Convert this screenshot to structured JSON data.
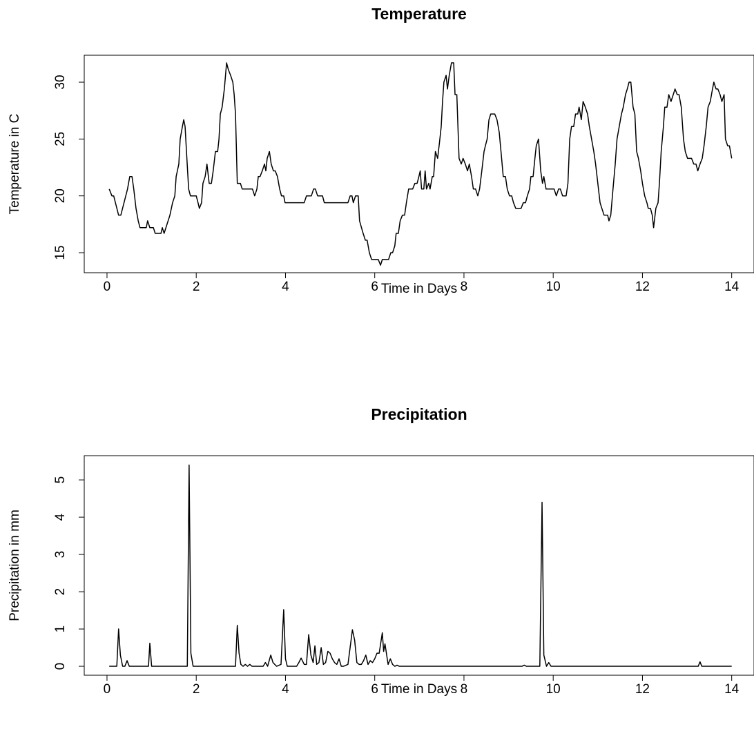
{
  "chart_data": [
    {
      "type": "line",
      "title": "Temperature",
      "x_label": "Time in Days",
      "y_label": "Temperature in C",
      "color": "#000000",
      "xlim": [
        -0.51,
        14.5
      ],
      "ylim": [
        13.24,
        32.37
      ],
      "xticks": [
        0,
        2,
        4,
        6,
        8,
        10,
        12,
        14
      ],
      "yticks": [
        15,
        20,
        25,
        30
      ],
      "x": [
        0.05,
        0.11,
        0.15,
        0.26,
        0.31,
        0.46,
        0.51,
        0.56,
        0.6,
        0.65,
        0.7,
        0.74,
        0.88,
        0.91,
        0.96,
        1.04,
        1.08,
        1.21,
        1.24,
        1.28,
        1.41,
        1.47,
        1.52,
        1.55,
        1.61,
        1.64,
        1.69,
        1.72,
        1.75,
        1.79,
        1.83,
        1.87,
        2.0,
        2.04,
        2.07,
        2.12,
        2.15,
        2.2,
        2.24,
        2.29,
        2.34,
        2.38,
        2.43,
        2.48,
        2.51,
        2.54,
        2.58,
        2.63,
        2.68,
        2.72,
        2.77,
        2.82,
        2.85,
        2.88,
        2.92,
        2.99,
        3.03,
        3.26,
        3.31,
        3.36,
        3.39,
        3.43,
        3.48,
        3.53,
        3.56,
        3.59,
        3.64,
        3.68,
        3.73,
        3.77,
        3.82,
        3.87,
        3.91,
        3.96,
        3.99,
        4.42,
        4.47,
        4.58,
        4.63,
        4.67,
        4.72,
        4.83,
        4.87,
        5.4,
        5.45,
        5.49,
        5.52,
        5.57,
        5.63,
        5.66,
        5.74,
        5.79,
        5.83,
        5.88,
        5.93,
        6.08,
        6.13,
        6.17,
        6.31,
        6.36,
        6.4,
        6.45,
        6.48,
        6.53,
        6.57,
        6.62,
        6.67,
        6.71,
        6.76,
        6.85,
        6.9,
        6.95,
        6.99,
        7.02,
        7.05,
        7.1,
        7.13,
        7.16,
        7.21,
        7.24,
        7.29,
        7.32,
        7.36,
        7.41,
        7.46,
        7.49,
        7.52,
        7.55,
        7.6,
        7.63,
        7.67,
        7.72,
        7.77,
        7.8,
        7.84,
        7.89,
        7.94,
        7.98,
        8.03,
        8.08,
        8.12,
        8.17,
        8.21,
        8.26,
        8.31,
        8.35,
        8.4,
        8.45,
        8.48,
        8.52,
        8.56,
        8.6,
        8.69,
        8.74,
        8.79,
        8.83,
        8.88,
        8.93,
        8.97,
        9.02,
        9.07,
        9.11,
        9.16,
        9.28,
        9.33,
        9.38,
        9.42,
        9.47,
        9.5,
        9.55,
        9.59,
        9.62,
        9.67,
        9.72,
        9.76,
        9.79,
        9.84,
        10.02,
        10.07,
        10.12,
        10.16,
        10.21,
        10.29,
        10.33,
        10.37,
        10.41,
        10.46,
        10.5,
        10.55,
        10.58,
        10.63,
        10.67,
        10.72,
        10.77,
        10.81,
        10.86,
        10.91,
        10.95,
        11.0,
        11.05,
        11.09,
        11.14,
        11.22,
        11.25,
        11.29,
        11.34,
        11.39,
        11.43,
        11.48,
        11.53,
        11.57,
        11.62,
        11.66,
        11.7,
        11.74,
        11.79,
        11.83,
        11.87,
        11.91,
        11.96,
        12.0,
        12.05,
        12.1,
        12.13,
        12.18,
        12.22,
        12.25,
        12.3,
        12.35,
        12.38,
        12.42,
        12.47,
        12.5,
        12.55,
        12.59,
        12.64,
        12.69,
        12.73,
        12.78,
        12.82,
        12.87,
        12.92,
        12.96,
        13.01,
        13.1,
        13.15,
        13.2,
        13.24,
        13.29,
        13.34,
        13.38,
        13.43,
        13.47,
        13.52,
        13.57,
        13.6,
        13.65,
        13.69,
        13.74,
        13.78,
        13.83,
        13.86,
        13.91,
        13.95,
        14.0
      ],
      "values": [
        20.6,
        20.0,
        20.0,
        18.3,
        18.3,
        20.6,
        21.7,
        21.7,
        20.6,
        18.9,
        17.8,
        17.2,
        17.2,
        17.8,
        17.2,
        17.2,
        16.7,
        16.7,
        17.2,
        16.7,
        18.3,
        19.4,
        20.0,
        21.7,
        22.8,
        25.0,
        26.1,
        26.7,
        26.1,
        23.3,
        20.6,
        20.0,
        20.0,
        19.4,
        18.9,
        19.4,
        21.1,
        21.7,
        22.8,
        21.1,
        21.1,
        22.2,
        23.9,
        23.9,
        25.0,
        27.2,
        27.8,
        29.4,
        31.7,
        31.1,
        30.6,
        30.0,
        28.9,
        27.2,
        21.1,
        21.1,
        20.6,
        20.6,
        20.0,
        20.6,
        21.7,
        21.7,
        22.2,
        22.8,
        22.2,
        23.3,
        23.9,
        22.8,
        22.2,
        22.2,
        21.7,
        20.6,
        20.0,
        20.0,
        19.4,
        19.4,
        20.0,
        20.0,
        20.6,
        20.6,
        20.0,
        20.0,
        19.4,
        19.4,
        20.0,
        20.0,
        19.4,
        20.0,
        20.0,
        17.8,
        16.7,
        16.1,
        16.1,
        15.0,
        14.4,
        14.4,
        13.9,
        14.4,
        14.4,
        15.0,
        15.0,
        15.6,
        16.7,
        16.7,
        17.8,
        18.3,
        18.3,
        19.4,
        20.6,
        20.6,
        21.1,
        21.1,
        21.7,
        22.2,
        20.6,
        20.6,
        22.2,
        20.6,
        21.1,
        20.6,
        21.7,
        21.7,
        23.9,
        23.3,
        25.0,
        26.1,
        28.3,
        30.0,
        30.6,
        29.4,
        30.6,
        31.7,
        31.7,
        28.9,
        28.9,
        23.3,
        22.8,
        23.3,
        22.8,
        22.2,
        22.8,
        21.7,
        20.6,
        20.6,
        20.0,
        20.6,
        22.2,
        23.9,
        24.4,
        25.0,
        26.7,
        27.2,
        27.2,
        26.7,
        25.6,
        23.9,
        21.7,
        21.7,
        20.6,
        20.0,
        20.0,
        19.4,
        18.9,
        18.9,
        19.4,
        19.4,
        20.0,
        20.6,
        21.7,
        21.7,
        23.3,
        24.4,
        25.0,
        22.2,
        21.1,
        21.7,
        20.6,
        20.6,
        20.0,
        20.6,
        20.6,
        20.0,
        20.0,
        21.1,
        25.0,
        26.1,
        26.1,
        27.2,
        27.2,
        27.8,
        26.7,
        28.3,
        27.8,
        27.2,
        26.1,
        25.0,
        23.9,
        22.8,
        21.1,
        19.4,
        18.9,
        18.3,
        18.3,
        17.8,
        18.3,
        20.6,
        22.8,
        25.0,
        26.1,
        27.2,
        27.8,
        28.9,
        29.4,
        30.0,
        30.0,
        27.8,
        27.2,
        23.9,
        23.3,
        22.2,
        21.1,
        20.0,
        19.4,
        18.9,
        18.9,
        18.3,
        17.2,
        18.9,
        19.4,
        21.1,
        23.9,
        26.1,
        27.8,
        27.8,
        28.9,
        28.3,
        28.9,
        29.4,
        28.9,
        28.9,
        27.8,
        25.0,
        23.9,
        23.3,
        23.3,
        22.8,
        22.8,
        22.2,
        22.8,
        23.3,
        24.4,
        26.1,
        27.8,
        28.3,
        29.4,
        30.0,
        29.4,
        29.4,
        28.9,
        28.3,
        28.9,
        25.0,
        24.4,
        24.4,
        23.3
      ]
    },
    {
      "type": "line",
      "title": "Precipitation",
      "x_label": "Time in Days",
      "y_label": "Precipitation in mm",
      "color": "#000000",
      "xlim": [
        -0.51,
        14.5
      ],
      "ylim": [
        -0.24,
        5.65
      ],
      "xticks": [
        0,
        2,
        4,
        6,
        8,
        10,
        12,
        14
      ],
      "yticks": [
        0,
        1,
        2,
        3,
        4,
        5
      ],
      "x": [
        0.05,
        0.22,
        0.26,
        0.3,
        0.35,
        0.4,
        0.45,
        0.5,
        0.93,
        0.96,
        1.0,
        1.8,
        1.84,
        1.88,
        1.93,
        2.88,
        2.92,
        2.96,
        3.0,
        3.05,
        3.1,
        3.15,
        3.2,
        3.25,
        3.5,
        3.55,
        3.6,
        3.67,
        3.72,
        3.8,
        3.9,
        3.96,
        4.0,
        4.04,
        4.25,
        4.3,
        4.35,
        4.42,
        4.47,
        4.52,
        4.57,
        4.62,
        4.66,
        4.7,
        4.75,
        4.8,
        4.85,
        4.9,
        4.95,
        5.0,
        5.05,
        5.1,
        5.15,
        5.2,
        5.25,
        5.3,
        5.4,
        5.5,
        5.55,
        5.6,
        5.65,
        5.7,
        5.75,
        5.8,
        5.85,
        5.9,
        5.95,
        6.0,
        6.05,
        6.1,
        6.17,
        6.2,
        6.23,
        6.3,
        6.35,
        6.4,
        6.45,
        6.5,
        6.55,
        6.6,
        9.3,
        9.35,
        9.4,
        9.7,
        9.75,
        9.79,
        9.85,
        9.9,
        9.95,
        13.25,
        13.29,
        13.33,
        14.0
      ],
      "values": [
        0,
        0,
        1.0,
        0.3,
        0,
        0,
        0.15,
        0,
        0,
        0.62,
        0,
        0,
        5.4,
        0.35,
        0,
        0,
        1.1,
        0.35,
        0.05,
        0,
        0.05,
        0,
        0.05,
        0,
        0,
        0.1,
        0,
        0.3,
        0.1,
        0,
        0.05,
        1.52,
        0.2,
        0,
        0,
        0.1,
        0.22,
        0.05,
        0.05,
        0.85,
        0.3,
        0.1,
        0.55,
        0.05,
        0.1,
        0.5,
        0.05,
        0.1,
        0.4,
        0.35,
        0.2,
        0.1,
        0.05,
        0.2,
        0,
        0,
        0.05,
        0.98,
        0.7,
        0.1,
        0.05,
        0.05,
        0.15,
        0.3,
        0.05,
        0.15,
        0.1,
        0.2,
        0.35,
        0.35,
        0.9,
        0.4,
        0.6,
        0.05,
        0.2,
        0.05,
        0,
        0.03,
        0,
        0,
        0,
        0.03,
        0,
        0,
        4.4,
        0.3,
        0,
        0.1,
        0,
        0,
        0.12,
        0,
        0
      ]
    }
  ]
}
